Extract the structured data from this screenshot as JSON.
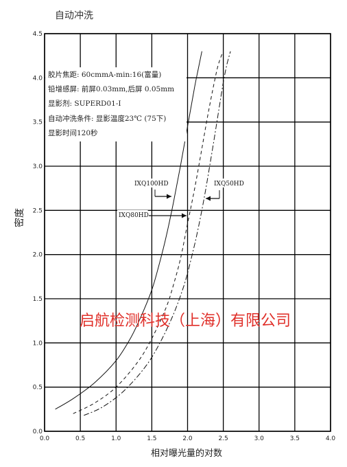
{
  "chart_data": {
    "type": "line",
    "title": "自动冲洗",
    "xlabel": "相对曝光量的对数",
    "ylabel": "密度",
    "xlim": [
      0.0,
      4.0
    ],
    "ylim": [
      0.0,
      4.5
    ],
    "xticks": [
      "0.0",
      "0.5",
      "1.0",
      "1.5",
      "2.0",
      "2.5",
      "3.0",
      "3.5",
      "4.0"
    ],
    "yticks": [
      "0.0",
      "0.5",
      "1.0",
      "1.5",
      "2.0",
      "2.5",
      "3.0",
      "3.5",
      "4.0",
      "4.5"
    ],
    "grid": true,
    "series": [
      {
        "name": "IXQ100HD",
        "style": "solid",
        "x": [
          0.15,
          0.4,
          0.7,
          1.0,
          1.2,
          1.35,
          1.5,
          1.6,
          1.7,
          1.8,
          1.9,
          2.0,
          2.1,
          2.15,
          2.2
        ],
        "y": [
          0.25,
          0.37,
          0.55,
          0.8,
          1.05,
          1.3,
          1.6,
          1.88,
          2.2,
          2.58,
          3.0,
          3.45,
          3.9,
          4.1,
          4.3
        ]
      },
      {
        "name": "IXQ80HD",
        "style": "dashed",
        "x": [
          0.4,
          0.7,
          1.0,
          1.3,
          1.5,
          1.7,
          1.8,
          1.9,
          2.0,
          2.1,
          2.2,
          2.3,
          2.4,
          2.45,
          2.5
        ],
        "y": [
          0.2,
          0.32,
          0.5,
          0.78,
          1.05,
          1.4,
          1.65,
          1.95,
          2.35,
          2.75,
          3.2,
          3.65,
          4.05,
          4.2,
          4.3
        ]
      },
      {
        "name": "IXQ50HD",
        "style": "dashdot",
        "x": [
          0.55,
          0.8,
          1.1,
          1.4,
          1.6,
          1.8,
          1.95,
          2.05,
          2.15,
          2.25,
          2.35,
          2.45,
          2.5,
          2.55,
          2.6
        ],
        "y": [
          0.18,
          0.27,
          0.45,
          0.72,
          0.98,
          1.32,
          1.65,
          1.95,
          2.3,
          2.72,
          3.2,
          3.7,
          3.95,
          4.15,
          4.3
        ]
      }
    ],
    "annotations": {
      "conditions": [
        "胶片焦距: 60cmmA-min:16(富量)",
        "铅增感屏: 前屏0.03mm,后屏 0.05mm",
        "显影剂: SUPERD01-I",
        "自动冲洗条件: 显影温度23℃ (75下)",
        "显影时间120秒"
      ],
      "labels": [
        {
          "text": "IXQ100HD",
          "series": "IXQ100HD"
        },
        {
          "text": "IXQ80HD",
          "series": "IXQ80HD"
        },
        {
          "text": "IXQ50HD",
          "series": "IXQ50HD"
        }
      ],
      "watermark": "启航检测科技（上海）有限公司"
    }
  },
  "colors": {
    "grid": "#000000",
    "curve": "#111111",
    "watermark": "#e0302a",
    "text": "#222222"
  }
}
